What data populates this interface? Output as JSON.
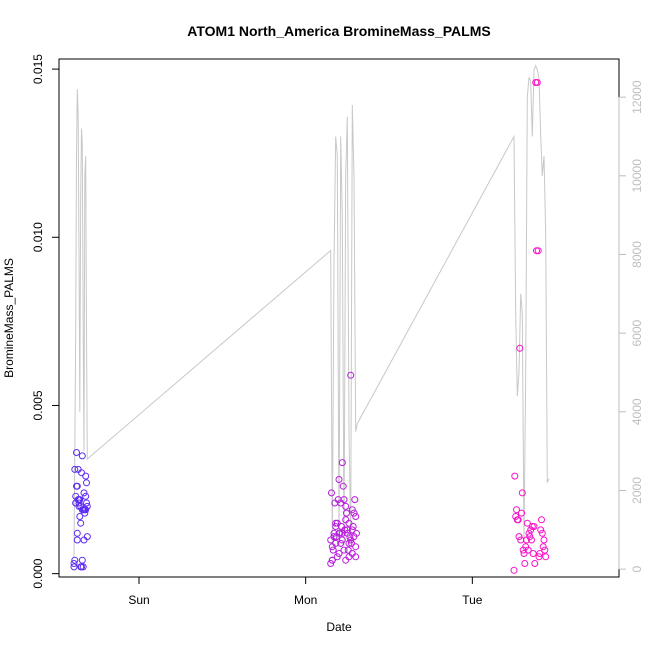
{
  "chart_data": {
    "type": "scatter",
    "title": "ATOM1 North_America BromineMass_PALMS",
    "xlabel": "Date",
    "ylabel": "BromineMass_PALMS",
    "x_ticks": [
      {
        "label": "Sun",
        "value": 0.45
      },
      {
        "label": "Mon",
        "value": 1.45
      },
      {
        "label": "Tue",
        "value": 2.45
      }
    ],
    "xlim": [
      -0.03,
      3.33
    ],
    "ylim": [
      -0.0001,
      0.0153
    ],
    "y_ticks": [
      {
        "label": "0.000",
        "value": 0.0
      },
      {
        "label": "0.005",
        "value": 0.005
      },
      {
        "label": "0.010",
        "value": 0.01
      },
      {
        "label": "0.015",
        "value": 0.015
      }
    ],
    "y2lim": [
      -200,
      12970
    ],
    "y2_ticks": [
      {
        "label": "0",
        "value": 0
      },
      {
        "label": "2000",
        "value": 2000
      },
      {
        "label": "4000",
        "value": 4000
      },
      {
        "label": "6000",
        "value": 6000
      },
      {
        "label": "8000",
        "value": 8000
      },
      {
        "label": "10000",
        "value": 10000
      },
      {
        "label": "12000",
        "value": 12000
      }
    ],
    "colors": {
      "line": "#c8c8c8",
      "point_start": "#5a2df5",
      "point_end": "#ff10c8",
      "right_axis": "#bebebe"
    },
    "altitude_series": {
      "x": [
        0.06,
        0.07,
        0.075,
        0.08,
        0.085,
        0.09,
        0.095,
        0.1,
        0.105,
        0.11,
        0.115,
        0.12,
        0.125,
        0.13,
        0.135,
        0.14,
        1.6,
        1.61,
        1.62,
        1.63,
        1.64,
        1.65,
        1.66,
        1.67,
        1.68,
        1.69,
        1.7,
        1.71,
        1.72,
        1.73,
        1.74,
        1.75,
        1.76,
        2.7,
        2.71,
        2.72,
        2.73,
        2.74,
        2.75,
        2.76,
        2.77,
        2.78,
        2.79,
        2.8,
        2.81,
        2.82,
        2.83,
        2.84,
        2.85,
        2.86,
        2.87,
        2.88,
        2.89,
        2.9,
        2.91
      ],
      "y": [
        300,
        6000,
        10500,
        12200,
        11500,
        8000,
        4000,
        9500,
        11200,
        10800,
        6000,
        3000,
        10000,
        10500,
        6000,
        2800,
        8100,
        700,
        7800,
        11000,
        10500,
        600,
        11000,
        9000,
        600,
        10000,
        11500,
        3500,
        800,
        11800,
        10000,
        3500,
        3700,
        11000,
        6500,
        4400,
        5000,
        7000,
        6500,
        700,
        5000,
        12000,
        12500,
        12400,
        11000,
        12700,
        12800,
        12700,
        12500,
        11000,
        10000,
        10500,
        8500,
        2200,
        2300
      ],
      "description_ignore": ""
    },
    "points_group_sun": {
      "x": [
        0.06,
        0.065,
        0.07,
        0.075,
        0.08,
        0.085,
        0.09,
        0.095,
        0.1,
        0.105,
        0.11,
        0.115,
        0.12,
        0.125,
        0.13,
        0.135,
        0.14,
        0.06,
        0.07,
        0.08,
        0.09,
        0.1,
        0.11,
        0.12,
        0.13,
        0.14,
        0.065,
        0.075,
        0.085,
        0.095,
        0.105,
        0.115,
        0.125,
        0.135,
        0.07,
        0.08,
        0.09,
        0.1,
        0.11,
        0.12,
        0.13
      ],
      "y": [
        0.0002,
        0.0004,
        0.0023,
        0.0036,
        0.0026,
        0.0031,
        0.0021,
        0.0022,
        0.002,
        0.003,
        0.0035,
        0.0019,
        0.0024,
        0.0018,
        0.0029,
        0.0027,
        0.002,
        0.0003,
        0.0021,
        0.0012,
        0.0022,
        0.0002,
        0.0019,
        0.0019,
        0.0023,
        0.0011,
        0.0031,
        0.0026,
        0.0022,
        0.0017,
        0.0002,
        0.0002,
        0.0019,
        0.0021,
        0.0021,
        0.001,
        0.002,
        0.0015,
        0.0004,
        0.001,
        0.0019
      ]
    },
    "points_group_mon": {
      "x": [
        1.6,
        1.605,
        1.61,
        1.615,
        1.62,
        1.625,
        1.63,
        1.635,
        1.64,
        1.645,
        1.65,
        1.655,
        1.66,
        1.665,
        1.67,
        1.675,
        1.68,
        1.685,
        1.69,
        1.695,
        1.7,
        1.705,
        1.71,
        1.715,
        1.72,
        1.725,
        1.73,
        1.735,
        1.74,
        1.745,
        1.75,
        1.755,
        1.6,
        1.61,
        1.62,
        1.63,
        1.64,
        1.65,
        1.66,
        1.67,
        1.68,
        1.69,
        1.7,
        1.71,
        1.72,
        1.73,
        1.74,
        1.75,
        1.61,
        1.63,
        1.65,
        1.67,
        1.69,
        1.71,
        1.73,
        1.75
      ],
      "y": [
        0.001,
        0.0024,
        0.0004,
        0.0007,
        0.0012,
        0.0021,
        0.0015,
        0.0011,
        0.0005,
        0.0022,
        0.0028,
        0.0012,
        0.0009,
        0.0014,
        0.0033,
        0.0026,
        0.0022,
        0.0013,
        0.0004,
        0.0018,
        0.0012,
        0.0007,
        0.0015,
        0.0011,
        0.0059,
        0.0009,
        0.0006,
        0.0014,
        0.0018,
        0.0022,
        0.0008,
        0.0012,
        0.0003,
        0.0004,
        0.0011,
        0.0009,
        0.0015,
        0.0012,
        0.0021,
        0.001,
        0.0007,
        0.0016,
        0.0013,
        0.0005,
        0.001,
        0.0019,
        0.0011,
        0.0017,
        0.0008,
        0.0014,
        0.0006,
        0.0012,
        0.002,
        0.0009,
        0.0013,
        0.0005
      ]
    },
    "points_group_tue": {
      "x": [
        2.7,
        2.705,
        2.71,
        2.715,
        2.72,
        2.725,
        2.73,
        2.735,
        2.74,
        2.745,
        2.75,
        2.755,
        2.76,
        2.765,
        2.77,
        2.775,
        2.78,
        2.785,
        2.79,
        2.795,
        2.8,
        2.805,
        2.81,
        2.815,
        2.82,
        2.825,
        2.83,
        2.835,
        2.84,
        2.845,
        2.85,
        2.855,
        2.86,
        2.865,
        2.87,
        2.875,
        2.88,
        2.885,
        2.89
      ],
      "y": [
        0.0001,
        0.0029,
        0.0017,
        0.0019,
        0.0016,
        0.0016,
        0.0011,
        0.0067,
        0.001,
        0.0018,
        0.0024,
        0.0007,
        0.0006,
        0.0003,
        0.0008,
        0.001,
        0.0015,
        0.0007,
        0.0012,
        0.0011,
        0.0013,
        0.001,
        0.0014,
        0.0006,
        0.0014,
        0.0003,
        0.0146,
        0.0096,
        0.0146,
        0.0096,
        0.0005,
        0.0006,
        0.0013,
        0.0016,
        0.0012,
        0.0008,
        0.001,
        0.0007,
        0.0005
      ]
    }
  }
}
